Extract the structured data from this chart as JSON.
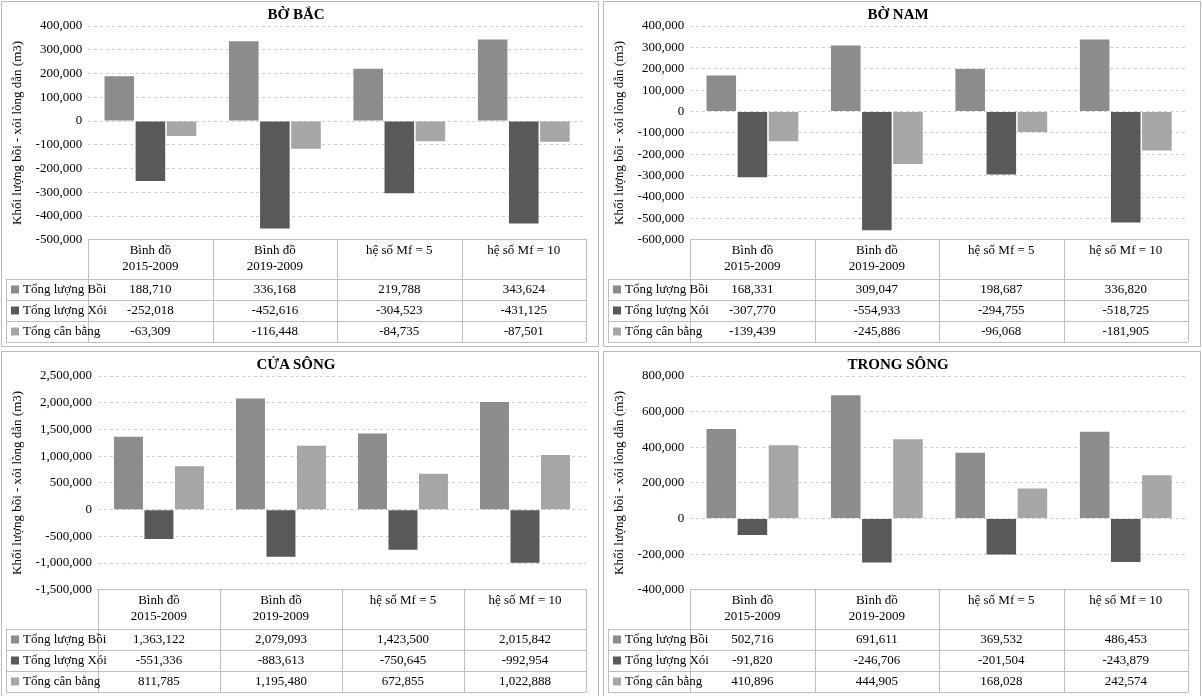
{
  "chart_data": [
    {
      "type": "bar",
      "title": "BỜ BẮC",
      "ylabel": "Khối lượng bồi - xói lòng dẫn (m3)",
      "categories": [
        "Bình đồ\n2015-2009",
        "Bình đồ\n2019-2009",
        "hệ số Mf = 5",
        "hệ số Mf = 10"
      ],
      "series": [
        {
          "name": "Tổng lượng Bồi",
          "color": "#8c8c8c",
          "values": [
            188710,
            336168,
            219788,
            343624
          ],
          "value_labels": [
            "188,710",
            "336,168",
            "219,788",
            "343,624"
          ]
        },
        {
          "name": "Tổng lượng Xói",
          "color": "#595959",
          "values": [
            -252018,
            -452616,
            -304523,
            -431125
          ],
          "value_labels": [
            "-252,018",
            "-452,616",
            "-304,523",
            "-431,125"
          ]
        },
        {
          "name": "Tổng cân bằng",
          "color": "#a6a6a6",
          "values": [
            -63309,
            -116448,
            -84735,
            -87501
          ],
          "value_labels": [
            "-63,309",
            "-116,448",
            "-84,735",
            "-87,501"
          ]
        }
      ],
      "ylim": [
        -500000,
        400000
      ],
      "yticks": [
        {
          "value": -500000,
          "label": "-500,000"
        },
        {
          "value": -400000,
          "label": "-400,000"
        },
        {
          "value": -300000,
          "label": "-300,000"
        },
        {
          "value": -200000,
          "label": "-200,000"
        },
        {
          "value": -100000,
          "label": "-100,000"
        },
        {
          "value": 0,
          "label": "0"
        },
        {
          "value": 100000,
          "label": "100,000"
        },
        {
          "value": 200000,
          "label": "200,000"
        },
        {
          "value": 300000,
          "label": "300,000"
        },
        {
          "value": 400000,
          "label": "400,000"
        }
      ],
      "grid": "y",
      "legend": "bottom"
    },
    {
      "type": "bar",
      "title": "BỜ NAM",
      "ylabel": "Khối lượng bồi - xói lòng dẫn (m3)",
      "categories": [
        "Bình đồ\n2015-2009",
        "Bình đồ\n2019-2009",
        "hệ số Mf = 5",
        "hệ số Mf = 10"
      ],
      "series": [
        {
          "name": "Tổng lượng Bồi",
          "color": "#8c8c8c",
          "values": [
            168331,
            309047,
            198687,
            336820
          ],
          "value_labels": [
            "168,331",
            "309,047",
            "198,687",
            "336,820"
          ]
        },
        {
          "name": "Tổng lượng Xói",
          "color": "#595959",
          "values": [
            -307770,
            -554933,
            -294755,
            -518725
          ],
          "value_labels": [
            "-307,770",
            "-554,933",
            "-294,755",
            "-518,725"
          ]
        },
        {
          "name": "Tổng cân bằng",
          "color": "#a6a6a6",
          "values": [
            -139439,
            -245886,
            -96068,
            -181905
          ],
          "value_labels": [
            "-139,439",
            "-245,886",
            "-96,068",
            "-181,905"
          ]
        }
      ],
      "ylim": [
        -600000,
        400000
      ],
      "yticks": [
        {
          "value": -600000,
          "label": "-600,000"
        },
        {
          "value": -500000,
          "label": "-500,000"
        },
        {
          "value": -400000,
          "label": "-400,000"
        },
        {
          "value": -300000,
          "label": "-300,000"
        },
        {
          "value": -200000,
          "label": "-200,000"
        },
        {
          "value": -100000,
          "label": "-100,000"
        },
        {
          "value": 0,
          "label": "0"
        },
        {
          "value": 100000,
          "label": "100,000"
        },
        {
          "value": 200000,
          "label": "200,000"
        },
        {
          "value": 300000,
          "label": "300,000"
        },
        {
          "value": 400000,
          "label": "400,000"
        }
      ],
      "grid": "y",
      "legend": "bottom"
    },
    {
      "type": "bar",
      "title": "CỬA SÔNG",
      "ylabel": "Khối lượng bồi - xói lòng dẫn (m3)",
      "categories": [
        "Bình đồ\n2015-2009",
        "Bình đồ\n2019-2009",
        "hệ số Mf = 5",
        "hệ số Mf = 10"
      ],
      "series": [
        {
          "name": "Tổng lượng Bồi",
          "color": "#8c8c8c",
          "values": [
            1363122,
            2079093,
            1423500,
            2015842
          ],
          "value_labels": [
            "1,363,122",
            "2,079,093",
            "1,423,500",
            "2,015,842"
          ]
        },
        {
          "name": "Tổng lượng Xói",
          "color": "#595959",
          "values": [
            -551336,
            -883613,
            -750645,
            -992954
          ],
          "value_labels": [
            "-551,336",
            "-883,613",
            "-750,645",
            "-992,954"
          ]
        },
        {
          "name": "Tổng cân bằng",
          "color": "#a6a6a6",
          "values": [
            811785,
            1195480,
            672855,
            1022888
          ],
          "value_labels": [
            "811,785",
            "1,195,480",
            "672,855",
            "1,022,888"
          ]
        }
      ],
      "ylim": [
        -1500000,
        2500000
      ],
      "yticks": [
        {
          "value": -1500000,
          "label": "-1,500,000"
        },
        {
          "value": -1000000,
          "label": "-1,000,000"
        },
        {
          "value": -500000,
          "label": "-500,000"
        },
        {
          "value": 0,
          "label": "0"
        },
        {
          "value": 500000,
          "label": "500,000"
        },
        {
          "value": 1000000,
          "label": "1,000,000"
        },
        {
          "value": 1500000,
          "label": "1,500,000"
        },
        {
          "value": 2000000,
          "label": "2,000,000"
        },
        {
          "value": 2500000,
          "label": "2,500,000"
        }
      ],
      "grid": "y",
      "legend": "bottom"
    },
    {
      "type": "bar",
      "title": "TRONG SÔNG",
      "ylabel": "Khối lượng bồi - xói lòng dẫn (m3)",
      "categories": [
        "Bình đồ\n2015-2009",
        "Bình đồ\n2019-2009",
        "hệ số Mf = 5",
        "hệ số Mf = 10"
      ],
      "series": [
        {
          "name": "Tổng lượng Bồi",
          "color": "#8c8c8c",
          "values": [
            502716,
            691611,
            369532,
            486453
          ],
          "value_labels": [
            "502,716",
            "691,611",
            "369,532",
            "486,453"
          ]
        },
        {
          "name": "Tổng lượng Xói",
          "color": "#595959",
          "values": [
            -91820,
            -246706,
            -201504,
            -243879
          ],
          "value_labels": [
            "-91,820",
            "-246,706",
            "-201,504",
            "-243,879"
          ]
        },
        {
          "name": "Tổng cân bằng",
          "color": "#a6a6a6",
          "values": [
            410896,
            444905,
            168028,
            242574
          ],
          "value_labels": [
            "410,896",
            "444,905",
            "168,028",
            "242,574"
          ]
        }
      ],
      "ylim": [
        -400000,
        800000
      ],
      "yticks": [
        {
          "value": -400000,
          "label": "-400,000"
        },
        {
          "value": -200000,
          "label": "-200,000"
        },
        {
          "value": 0,
          "label": "0"
        },
        {
          "value": 200000,
          "label": "200,000"
        },
        {
          "value": 400000,
          "label": "400,000"
        },
        {
          "value": 600000,
          "label": "600,000"
        },
        {
          "value": 800000,
          "label": "800,000"
        }
      ],
      "grid": "y",
      "legend": "bottom"
    }
  ]
}
